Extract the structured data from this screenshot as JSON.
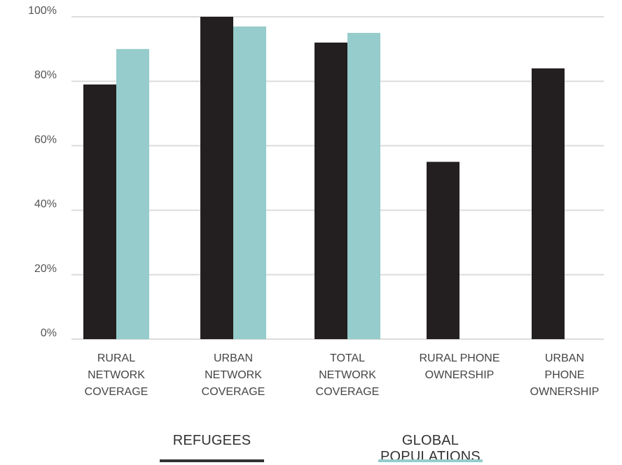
{
  "chart_data": {
    "type": "bar",
    "categories": [
      [
        "RURAL",
        "NETWORK",
        "COVERAGE"
      ],
      [
        "URBAN",
        "NETWORK",
        "COVERAGE"
      ],
      [
        "TOTAL",
        "NETWORK",
        "COVERAGE"
      ],
      [
        "RURAL PHONE",
        "OWNERSHIP"
      ],
      [
        "URBAN",
        "PHONE",
        "OWNERSHIP"
      ]
    ],
    "series": [
      {
        "name": "REFUGEES",
        "color": "#231f20",
        "values": [
          79,
          100,
          92,
          55,
          84
        ]
      },
      {
        "name": "GLOBAL POPULATIONS",
        "color": "#96cccb",
        "values": [
          90,
          97,
          95,
          null,
          null
        ]
      }
    ],
    "yticks": [
      "0%",
      "20%",
      "40%",
      "60%",
      "80%",
      "100%"
    ],
    "ylim": [
      0,
      100
    ],
    "grid": true,
    "legend_position": "bottom"
  }
}
